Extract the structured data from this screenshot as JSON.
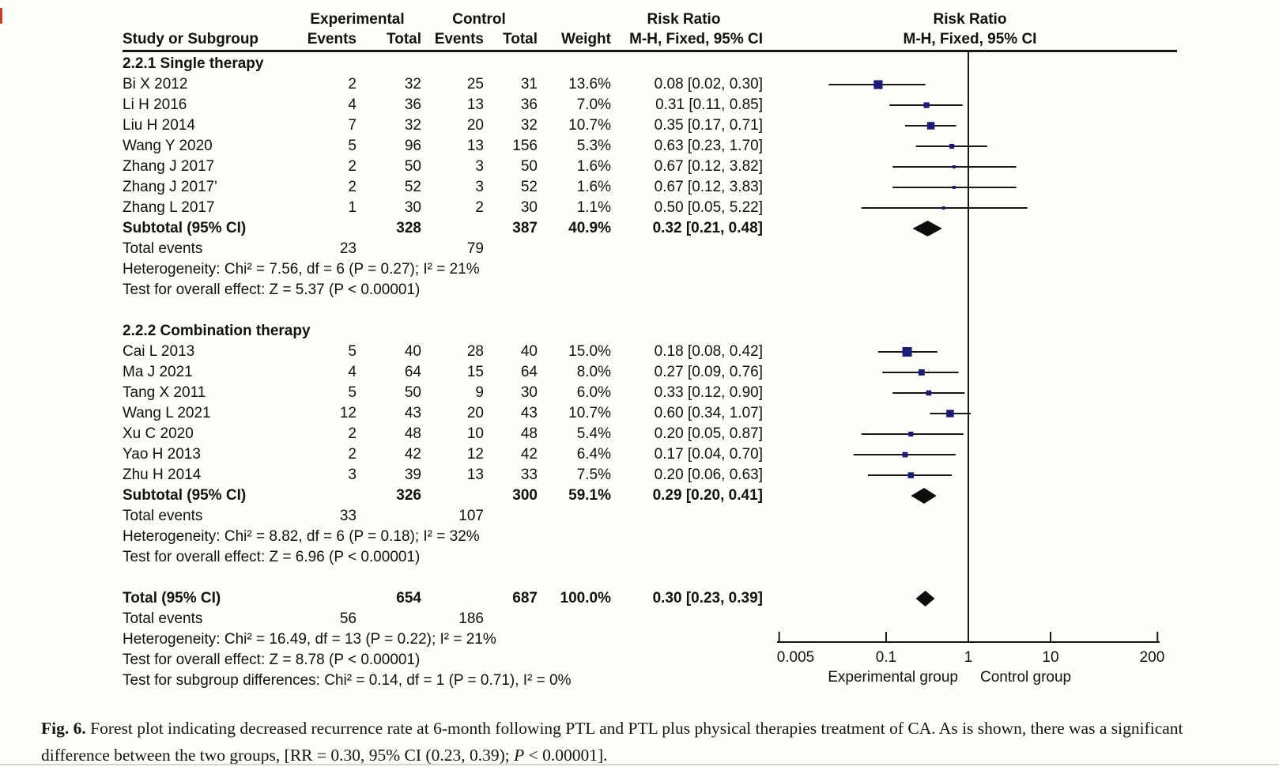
{
  "colors": {
    "ink": "#161616",
    "marker_navy": "#1b1b78",
    "diamond_black": "#0d0d0d",
    "artifact_red": "#c83c30"
  },
  "header": {
    "group1": "Experimental",
    "group2": "Control",
    "study_col": "Study or Subgroup",
    "events_col": "Events",
    "total_col": "Total",
    "events_col2": "Events",
    "total_col2": "Total",
    "weight_col": "Weight",
    "risk_ratio": "Risk Ratio",
    "mh_col": "M-H, Fixed, 95% CI",
    "plot_title": "Risk Ratio",
    "plot_subtitle": "M-H, Fixed, 95% CI"
  },
  "chart_data": {
    "type": "forest",
    "x_scale": "log",
    "x_ticks": [
      "0.005",
      "0.1",
      "1",
      "10",
      "200"
    ],
    "x_tick_values": [
      0.005,
      0.1,
      1,
      10,
      200
    ],
    "x_range": [
      0.005,
      200
    ],
    "null_line": 1,
    "axis_label_left": "Experimental group",
    "axis_label_right": "Control group",
    "groups": [
      {
        "section": "2.2.1 Single therapy",
        "studies": [
          {
            "study": "Bi X 2012",
            "e1": "2",
            "t1": "32",
            "e2": "25",
            "t2": "31",
            "weight": "13.6%",
            "w": 13.6,
            "rr": 0.08,
            "lo": 0.02,
            "hi": 0.3,
            "ci_text": "0.08 [0.02, 0.30]"
          },
          {
            "study": "Li H 2016",
            "e1": "4",
            "t1": "36",
            "e2": "13",
            "t2": "36",
            "weight": "7.0%",
            "w": 7.0,
            "rr": 0.31,
            "lo": 0.11,
            "hi": 0.85,
            "ci_text": "0.31 [0.11, 0.85]"
          },
          {
            "study": "Liu H 2014",
            "e1": "7",
            "t1": "32",
            "e2": "20",
            "t2": "32",
            "weight": "10.7%",
            "w": 10.7,
            "rr": 0.35,
            "lo": 0.17,
            "hi": 0.71,
            "ci_text": "0.35 [0.17, 0.71]"
          },
          {
            "study": "Wang Y 2020",
            "e1": "5",
            "t1": "96",
            "e2": "13",
            "t2": "156",
            "weight": "5.3%",
            "w": 5.3,
            "rr": 0.63,
            "lo": 0.23,
            "hi": 1.7,
            "ci_text": "0.63 [0.23, 1.70]"
          },
          {
            "study": "Zhang J 2017",
            "e1": "2",
            "t1": "50",
            "e2": "3",
            "t2": "50",
            "weight": "1.6%",
            "w": 1.6,
            "rr": 0.67,
            "lo": 0.12,
            "hi": 3.82,
            "ci_text": "0.67 [0.12, 3.82]"
          },
          {
            "study": "Zhang J 2017'",
            "e1": "2",
            "t1": "52",
            "e2": "3",
            "t2": "52",
            "weight": "1.6%",
            "w": 1.6,
            "rr": 0.67,
            "lo": 0.12,
            "hi": 3.83,
            "ci_text": "0.67 [0.12, 3.83]"
          },
          {
            "study": "Zhang L 2017",
            "e1": "1",
            "t1": "30",
            "e2": "2",
            "t2": "30",
            "weight": "1.1%",
            "w": 1.1,
            "rr": 0.5,
            "lo": 0.05,
            "hi": 5.22,
            "ci_text": "0.50 [0.05, 5.22]"
          }
        ],
        "subtotal": {
          "study": "Subtotal (95% CI)",
          "t1": "328",
          "t2": "387",
          "weight": "40.9%",
          "rr": 0.32,
          "lo": 0.21,
          "hi": 0.48,
          "ci_text": "0.32 [0.21, 0.48]"
        },
        "total_events": {
          "label": "Total events",
          "v1": "23",
          "v2": "79"
        },
        "heterogeneity": "Heterogeneity: Chi² = 7.56, df = 6 (P = 0.27); I² = 21%",
        "overall": "Test for overall effect: Z = 5.37 (P < 0.00001)"
      },
      {
        "section": "2.2.2 Combination therapy",
        "studies": [
          {
            "study": "Cai L 2013",
            "e1": "5",
            "t1": "40",
            "e2": "28",
            "t2": "40",
            "weight": "15.0%",
            "w": 15.0,
            "rr": 0.18,
            "lo": 0.08,
            "hi": 0.42,
            "ci_text": "0.18 [0.08, 0.42]"
          },
          {
            "study": "Ma J 2021",
            "e1": "4",
            "t1": "64",
            "e2": "15",
            "t2": "64",
            "weight": "8.0%",
            "w": 8.0,
            "rr": 0.27,
            "lo": 0.09,
            "hi": 0.76,
            "ci_text": "0.27 [0.09, 0.76]"
          },
          {
            "study": "Tang X 2011",
            "e1": "5",
            "t1": "50",
            "e2": "9",
            "t2": "30",
            "weight": "6.0%",
            "w": 6.0,
            "rr": 0.33,
            "lo": 0.12,
            "hi": 0.9,
            "ci_text": "0.33 [0.12, 0.90]"
          },
          {
            "study": "Wang L 2021",
            "e1": "12",
            "t1": "43",
            "e2": "20",
            "t2": "43",
            "weight": "10.7%",
            "w": 10.7,
            "rr": 0.6,
            "lo": 0.34,
            "hi": 1.07,
            "ci_text": "0.60 [0.34, 1.07]"
          },
          {
            "study": "Xu C 2020",
            "e1": "2",
            "t1": "48",
            "e2": "10",
            "t2": "48",
            "weight": "5.4%",
            "w": 5.4,
            "rr": 0.2,
            "lo": 0.05,
            "hi": 0.87,
            "ci_text": "0.20 [0.05, 0.87]"
          },
          {
            "study": "Yao H 2013",
            "e1": "2",
            "t1": "42",
            "e2": "12",
            "t2": "42",
            "weight": "6.4%",
            "w": 6.4,
            "rr": 0.17,
            "lo": 0.04,
            "hi": 0.7,
            "ci_text": "0.17 [0.04, 0.70]"
          },
          {
            "study": "Zhu H 2014",
            "e1": "3",
            "t1": "39",
            "e2": "13",
            "t2": "33",
            "weight": "7.5%",
            "w": 7.5,
            "rr": 0.2,
            "lo": 0.06,
            "hi": 0.63,
            "ci_text": "0.20 [0.06, 0.63]"
          }
        ],
        "subtotal": {
          "study": "Subtotal (95% CI)",
          "t1": "326",
          "t2": "300",
          "weight": "59.1%",
          "rr": 0.29,
          "lo": 0.2,
          "hi": 0.41,
          "ci_text": "0.29 [0.20, 0.41]"
        },
        "total_events": {
          "label": "Total events",
          "v1": "33",
          "v2": "107"
        },
        "heterogeneity": "Heterogeneity: Chi² = 8.82, df = 6 (P = 0.18); I² = 32%",
        "overall": "Test for overall effect: Z = 6.96 (P < 0.00001)"
      }
    ],
    "total": {
      "row": {
        "study": "Total (95% CI)",
        "t1": "654",
        "t2": "687",
        "weight": "100.0%",
        "rr": 0.3,
        "lo": 0.23,
        "hi": 0.39,
        "ci_text": "0.30 [0.23, 0.39]"
      },
      "total_events": {
        "label": "Total events",
        "v1": "56",
        "v2": "186"
      },
      "heterogeneity": "Heterogeneity: Chi² = 16.49, df = 13 (P = 0.22); I² = 21%",
      "overall": "Test for overall effect: Z = 8.78 (P < 0.00001)",
      "subgroup_diff": "Test for subgroup differences: Chi² = 0.14, df = 1 (P = 0.71), I² = 0%"
    }
  },
  "caption": {
    "label": "Fig. 6.",
    "body": " Forest plot indicating decreased recurrence rate at 6-month following PTL and PTL plus physical therapies treatment of CA. As is shown, there was a significant difference between the two groups, [RR = 0.30, 95% CI (0.23, 0.39); ",
    "p_italic": "P",
    "tail": " < 0.00001]."
  }
}
